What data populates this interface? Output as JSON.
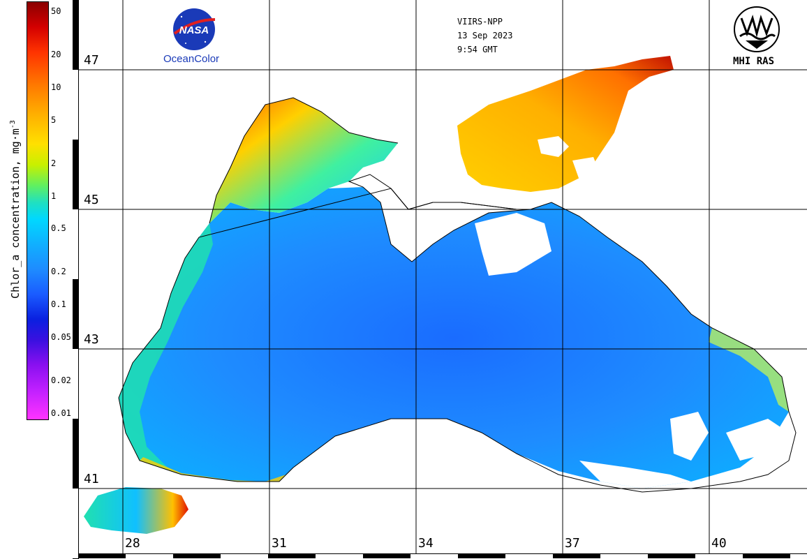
{
  "colorbar": {
    "label": "Chlor_a concentration, mg·m",
    "label_exponent": "-3",
    "ticks": [
      "50",
      "20",
      "10",
      "5",
      "2",
      "1",
      "0.5",
      "0.2",
      "0.1",
      "0.05",
      "0.02",
      "0.01"
    ]
  },
  "satellite_info": {
    "sensor": "VIIRS-NPP",
    "date": "13 Sep 2023",
    "time": "9:54 GMT"
  },
  "logos": {
    "nasa_badge": "NASA",
    "nasa_caption": "OceanColor",
    "mhi_caption": "MHI RAS"
  },
  "latitude_labels": [
    "47",
    "45",
    "43",
    "41"
  ],
  "longitude_labels": [
    "28",
    "31",
    "34",
    "37",
    "40"
  ],
  "colors": {
    "low": "#ff33ff",
    "mid": "#1e8cff",
    "high": "#8a0000",
    "land": "#ffffff",
    "grid": "#000000"
  }
}
